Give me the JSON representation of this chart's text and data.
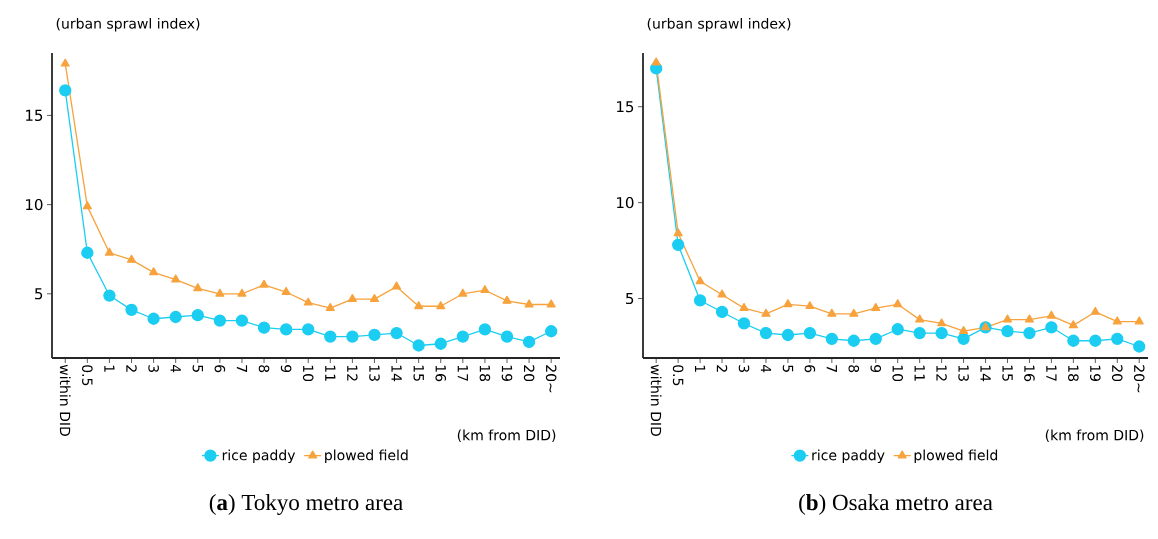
{
  "chart_data": [
    {
      "type": "line",
      "title": "(**a**) Tokyo metro area",
      "xlabel": "(km from DID)",
      "ylabel": "(urban sprawl index)",
      "categories": [
        "within DID",
        "0.5",
        "1",
        "2",
        "3",
        "4",
        "5",
        "6",
        "7",
        "8",
        "9",
        "10",
        "11",
        "12",
        "13",
        "14",
        "15",
        "16",
        "17",
        "18",
        "19",
        "20",
        "20~"
      ],
      "series": [
        {
          "name": "rice paddy",
          "color": "#1ccdf2",
          "marker": "circle",
          "values": [
            16.4,
            7.3,
            4.9,
            4.1,
            3.6,
            3.7,
            3.8,
            3.5,
            3.5,
            3.1,
            3.0,
            3.0,
            2.6,
            2.6,
            2.7,
            2.8,
            2.1,
            2.2,
            2.6,
            3.0,
            2.6,
            2.3,
            2.9
          ]
        },
        {
          "name": "plowed field",
          "color": "#f7a23c",
          "marker": "triangle",
          "values": [
            17.9,
            9.9,
            7.3,
            6.9,
            6.2,
            5.8,
            5.3,
            5.0,
            5.0,
            5.5,
            5.1,
            4.5,
            4.2,
            4.7,
            4.7,
            5.4,
            4.3,
            4.3,
            5.0,
            5.2,
            4.6,
            4.4,
            4.4
          ]
        }
      ],
      "ylim": [
        1.4,
        18.5
      ],
      "yticks": [
        5,
        10,
        15
      ],
      "grid": false,
      "legend": "bottom",
      "line_style": "solid"
    },
    {
      "type": "line",
      "title": "(**b**) Osaka metro area",
      "xlabel": "(km from DID)",
      "ylabel": "(urban sprawl index)",
      "categories": [
        "within DID",
        "0.5",
        "1",
        "2",
        "3",
        "4",
        "5",
        "6",
        "7",
        "8",
        "9",
        "10",
        "11",
        "12",
        "13",
        "14",
        "15",
        "16",
        "17",
        "18",
        "19",
        "20",
        "20~"
      ],
      "series": [
        {
          "name": "rice paddy",
          "color": "#1ccdf2",
          "marker": "circle",
          "values": [
            17.0,
            7.8,
            4.9,
            4.3,
            3.7,
            3.2,
            3.1,
            3.2,
            2.9,
            2.8,
            2.9,
            3.4,
            3.2,
            3.2,
            2.9,
            3.5,
            3.3,
            3.2,
            3.5,
            2.8,
            2.8,
            2.9,
            2.5
          ]
        },
        {
          "name": "plowed field",
          "color": "#f7a23c",
          "marker": "triangle",
          "values": [
            17.3,
            8.4,
            5.9,
            5.2,
            4.5,
            4.2,
            4.7,
            4.6,
            4.2,
            4.2,
            4.5,
            4.7,
            3.9,
            3.7,
            3.3,
            3.5,
            3.9,
            3.9,
            4.1,
            3.6,
            4.3,
            3.8,
            3.8
          ]
        }
      ],
      "ylim": [
        1.9,
        17.8
      ],
      "yticks": [
        5,
        10,
        15
      ],
      "grid": false,
      "legend": "bottom",
      "line_style": "solid"
    }
  ]
}
